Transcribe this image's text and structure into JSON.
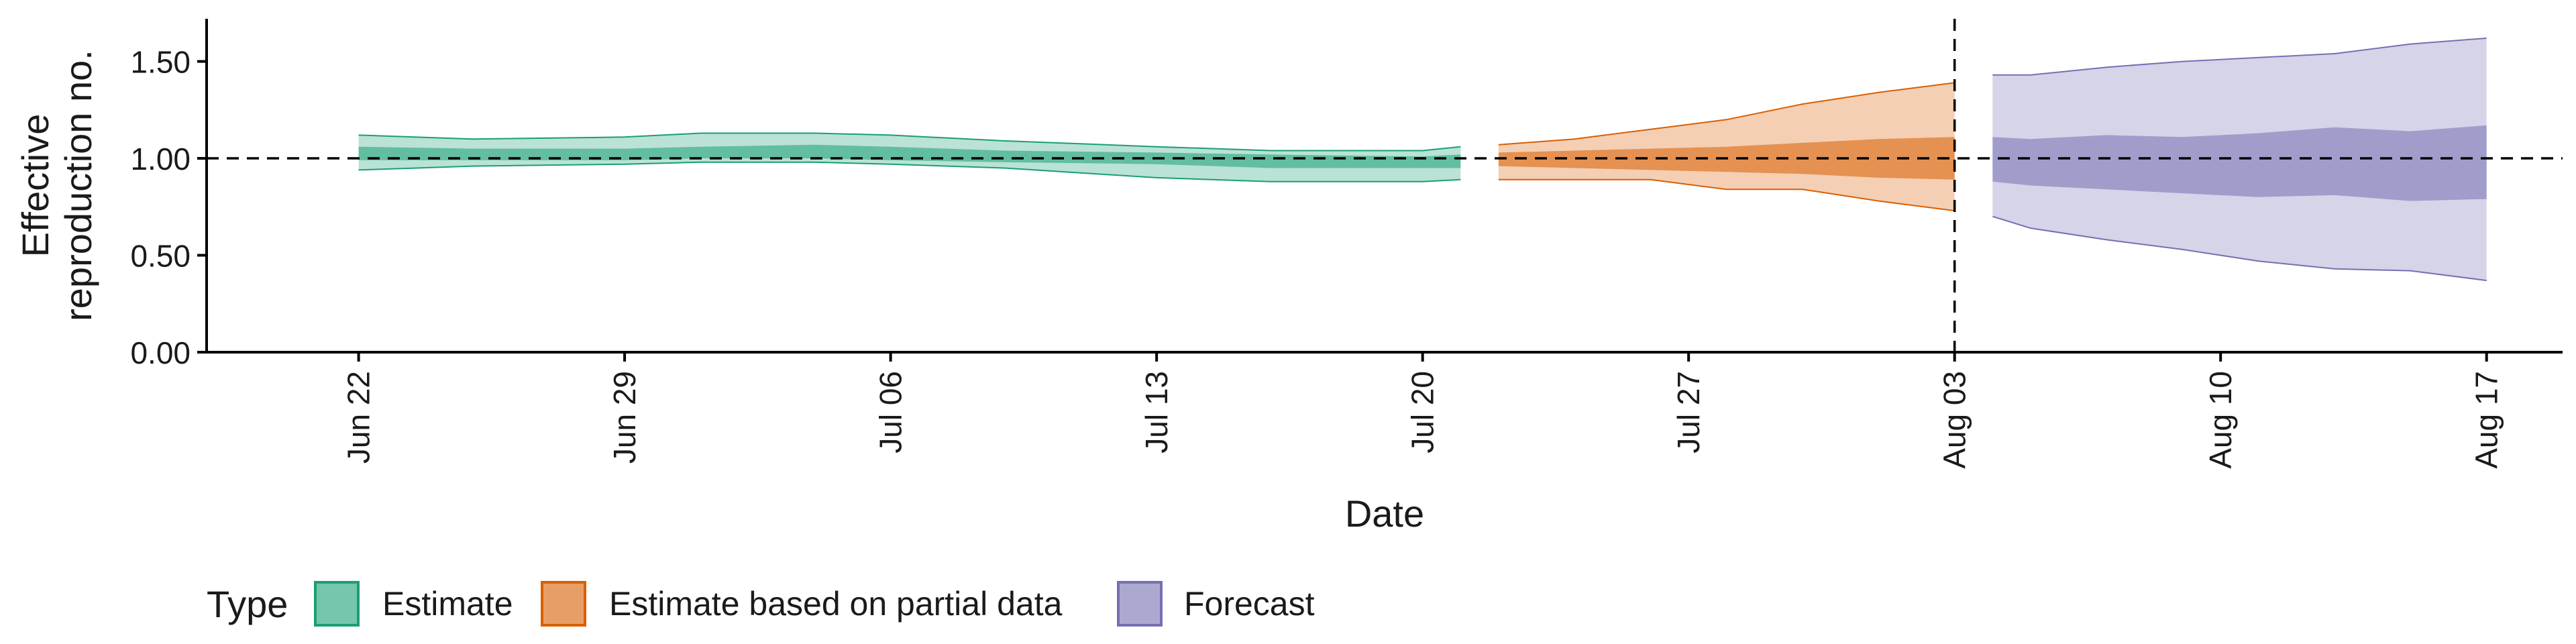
{
  "chart_data": {
    "type": "area",
    "title": "",
    "xlabel": "Date",
    "ylabel_lines": [
      "Effective",
      "reproduction no."
    ],
    "ylim": [
      0,
      1.72
    ],
    "y_ticks": [
      {
        "value": 0,
        "label": "0.00"
      },
      {
        "value": 0.5,
        "label": "0.50"
      },
      {
        "value": 1,
        "label": "1.00"
      },
      {
        "value": 1.5,
        "label": "1.50"
      }
    ],
    "x_start": "2020-06-18",
    "x_end": "2020-08-19",
    "x_ticks": [
      {
        "date": "2020-06-22",
        "label": "Jun 22"
      },
      {
        "date": "2020-06-29",
        "label": "Jun 29"
      },
      {
        "date": "2020-07-06",
        "label": "Jul 06"
      },
      {
        "date": "2020-07-13",
        "label": "Jul 13"
      },
      {
        "date": "2020-07-20",
        "label": "Jul 20"
      },
      {
        "date": "2020-07-27",
        "label": "Jul 27"
      },
      {
        "date": "2020-08-03",
        "label": "Aug 03"
      },
      {
        "date": "2020-08-10",
        "label": "Aug 10"
      },
      {
        "date": "2020-08-17",
        "label": "Aug 17"
      }
    ],
    "reference_line_y": 1.0,
    "vertical_line_date": "2020-08-03",
    "legend": {
      "title": "Type",
      "position": "bottom",
      "items": [
        {
          "label": "Estimate",
          "color": "#1b9e77"
        },
        {
          "label": "Estimate based on partial data",
          "color": "#d95f02"
        },
        {
          "label": "Forecast",
          "color": "#7570b3"
        }
      ]
    },
    "series": [
      {
        "name": "Estimate",
        "color": "#1b9e77",
        "dates": [
          "2020-06-22",
          "2020-06-25",
          "2020-06-29",
          "2020-07-01",
          "2020-07-04",
          "2020-07-06",
          "2020-07-09",
          "2020-07-13",
          "2020-07-16",
          "2020-07-20",
          "2020-07-21"
        ],
        "lower90": [
          0.94,
          0.96,
          0.97,
          0.98,
          0.98,
          0.97,
          0.95,
          0.9,
          0.88,
          0.88,
          0.89
        ],
        "upper90": [
          1.12,
          1.1,
          1.11,
          1.13,
          1.13,
          1.12,
          1.09,
          1.06,
          1.04,
          1.04,
          1.06
        ],
        "lower50": [
          0.99,
          0.99,
          0.99,
          1.0,
          1.0,
          0.99,
          0.98,
          0.97,
          0.95,
          0.95,
          0.95
        ],
        "upper50": [
          1.06,
          1.05,
          1.05,
          1.06,
          1.07,
          1.06,
          1.04,
          1.03,
          1.02,
          1.01,
          1.02
        ]
      },
      {
        "name": "Estimate based on partial data",
        "color": "#d95f02",
        "dates": [
          "2020-07-22",
          "2020-07-24",
          "2020-07-26",
          "2020-07-28",
          "2020-07-30",
          "2020-08-01",
          "2020-08-03"
        ],
        "lower90": [
          0.89,
          0.89,
          0.89,
          0.84,
          0.84,
          0.78,
          0.73
        ],
        "upper90": [
          1.07,
          1.1,
          1.15,
          1.2,
          1.28,
          1.34,
          1.39
        ],
        "lower50": [
          0.96,
          0.95,
          0.94,
          0.93,
          0.92,
          0.9,
          0.89
        ],
        "upper50": [
          1.03,
          1.04,
          1.05,
          1.06,
          1.08,
          1.1,
          1.11
        ]
      },
      {
        "name": "Forecast",
        "color": "#7570b3",
        "dates": [
          "2020-08-04",
          "2020-08-05",
          "2020-08-07",
          "2020-08-09",
          "2020-08-11",
          "2020-08-13",
          "2020-08-15",
          "2020-08-17"
        ],
        "lower90": [
          0.7,
          0.64,
          0.58,
          0.53,
          0.47,
          0.43,
          0.42,
          0.37
        ],
        "upper90": [
          1.43,
          1.43,
          1.47,
          1.5,
          1.52,
          1.54,
          1.59,
          1.62
        ],
        "lower50": [
          0.88,
          0.86,
          0.84,
          0.82,
          0.8,
          0.81,
          0.78,
          0.79
        ],
        "upper50": [
          1.11,
          1.1,
          1.12,
          1.11,
          1.13,
          1.16,
          1.14,
          1.17
        ]
      }
    ]
  }
}
